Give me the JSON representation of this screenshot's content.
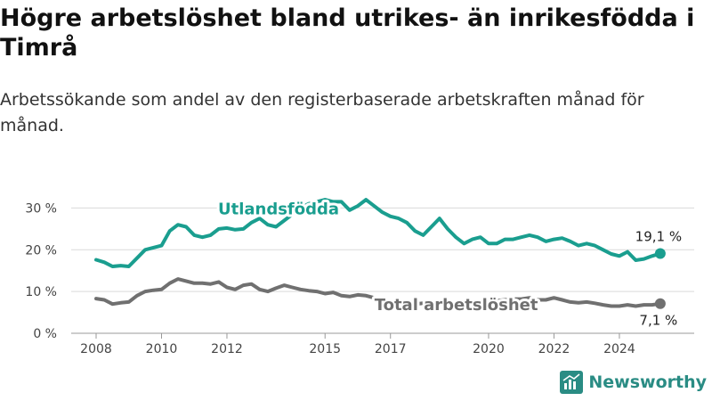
{
  "title": "Högre arbetslöshet bland utrikes- än inrikesfödda i Timrå",
  "subtitle": "Arbetssökande som andel av den registerbaserade arbetskraften månad för månad.",
  "brand": "Newsworthy",
  "colors": {
    "utlandsfodda": "#1a9e8f",
    "total": "#707070",
    "grid": "#d9d9d9",
    "brand": "#2a8c84"
  },
  "chart_data": {
    "type": "line",
    "x_ticks": [
      "2008",
      "2010",
      "2012",
      "2015",
      "2017",
      "2020",
      "2022",
      "2024"
    ],
    "y_ticks": [
      "0 %",
      "10 %",
      "20 %",
      "30 %"
    ],
    "ylim": [
      0,
      35
    ],
    "xlim": [
      "2008-01",
      "2025-06"
    ],
    "series": [
      {
        "name": "Utlandsfödda",
        "color": "#1a9e8f",
        "end_label": "19,1 %",
        "points": [
          [
            "2008-01",
            17.6
          ],
          [
            "2008-04",
            17.0
          ],
          [
            "2008-07",
            16.0
          ],
          [
            "2008-10",
            16.2
          ],
          [
            "2009-01",
            16.0
          ],
          [
            "2009-04",
            18.0
          ],
          [
            "2009-07",
            20.0
          ],
          [
            "2009-10",
            20.5
          ],
          [
            "2010-01",
            21.0
          ],
          [
            "2010-04",
            24.5
          ],
          [
            "2010-07",
            26.0
          ],
          [
            "2010-10",
            25.5
          ],
          [
            "2011-01",
            23.5
          ],
          [
            "2011-04",
            23.0
          ],
          [
            "2011-07",
            23.5
          ],
          [
            "2011-10",
            25.0
          ],
          [
            "2012-01",
            25.2
          ],
          [
            "2012-04",
            24.8
          ],
          [
            "2012-07",
            25.0
          ],
          [
            "2012-10",
            26.5
          ],
          [
            "2013-01",
            27.5
          ],
          [
            "2013-04",
            26.0
          ],
          [
            "2013-07",
            25.5
          ],
          [
            "2013-10",
            27.0
          ],
          [
            "2014-01",
            28.5
          ],
          [
            "2014-04",
            30.0
          ],
          [
            "2014-07",
            31.0
          ],
          [
            "2014-10",
            31.5
          ],
          [
            "2015-01",
            32.0
          ],
          [
            "2015-04",
            31.5
          ],
          [
            "2015-07",
            31.5
          ],
          [
            "2015-10",
            29.5
          ],
          [
            "2016-01",
            30.5
          ],
          [
            "2016-04",
            32.0
          ],
          [
            "2016-07",
            30.5
          ],
          [
            "2016-10",
            29.0
          ],
          [
            "2017-01",
            28.0
          ],
          [
            "2017-04",
            27.5
          ],
          [
            "2017-07",
            26.5
          ],
          [
            "2017-10",
            24.5
          ],
          [
            "2018-01",
            23.5
          ],
          [
            "2018-04",
            25.5
          ],
          [
            "2018-07",
            27.5
          ],
          [
            "2018-10",
            25.0
          ],
          [
            "2019-01",
            23.0
          ],
          [
            "2019-04",
            21.5
          ],
          [
            "2019-07",
            22.5
          ],
          [
            "2019-10",
            23.0
          ],
          [
            "2020-01",
            21.5
          ],
          [
            "2020-04",
            21.5
          ],
          [
            "2020-07",
            22.5
          ],
          [
            "2020-10",
            22.5
          ],
          [
            "2021-01",
            23.0
          ],
          [
            "2021-04",
            23.5
          ],
          [
            "2021-07",
            23.0
          ],
          [
            "2021-10",
            22.0
          ],
          [
            "2022-01",
            22.5
          ],
          [
            "2022-04",
            22.8
          ],
          [
            "2022-07",
            22.0
          ],
          [
            "2022-10",
            21.0
          ],
          [
            "2023-01",
            21.5
          ],
          [
            "2023-04",
            21.0
          ],
          [
            "2023-07",
            20.0
          ],
          [
            "2023-10",
            19.0
          ],
          [
            "2024-01",
            18.5
          ],
          [
            "2024-04",
            19.5
          ],
          [
            "2024-07",
            17.5
          ],
          [
            "2024-10",
            17.8
          ],
          [
            "2025-01",
            18.5
          ],
          [
            "2025-04",
            19.1
          ]
        ]
      },
      {
        "name": "Total arbetslöshet",
        "color": "#707070",
        "end_label": "7,1 %",
        "points": [
          [
            "2008-01",
            8.3
          ],
          [
            "2008-04",
            8.0
          ],
          [
            "2008-07",
            7.0
          ],
          [
            "2008-10",
            7.3
          ],
          [
            "2009-01",
            7.5
          ],
          [
            "2009-04",
            9.0
          ],
          [
            "2009-07",
            10.0
          ],
          [
            "2009-10",
            10.3
          ],
          [
            "2010-01",
            10.5
          ],
          [
            "2010-04",
            12.0
          ],
          [
            "2010-07",
            13.0
          ],
          [
            "2010-10",
            12.5
          ],
          [
            "2011-01",
            12.0
          ],
          [
            "2011-04",
            12.0
          ],
          [
            "2011-07",
            11.8
          ],
          [
            "2011-10",
            12.3
          ],
          [
            "2012-01",
            11.0
          ],
          [
            "2012-04",
            10.5
          ],
          [
            "2012-07",
            11.5
          ],
          [
            "2012-10",
            11.8
          ],
          [
            "2013-01",
            10.5
          ],
          [
            "2013-04",
            10.0
          ],
          [
            "2013-07",
            10.8
          ],
          [
            "2013-10",
            11.5
          ],
          [
            "2014-01",
            11.0
          ],
          [
            "2014-04",
            10.5
          ],
          [
            "2014-07",
            10.2
          ],
          [
            "2014-10",
            10.0
          ],
          [
            "2015-01",
            9.5
          ],
          [
            "2015-04",
            9.8
          ],
          [
            "2015-07",
            9.0
          ],
          [
            "2015-10",
            8.8
          ],
          [
            "2016-01",
            9.2
          ],
          [
            "2016-04",
            9.0
          ],
          [
            "2016-07",
            8.5
          ],
          [
            "2016-10",
            7.8
          ],
          [
            "2017-01",
            7.5
          ],
          [
            "2017-04",
            7.2
          ],
          [
            "2017-07",
            7.5
          ],
          [
            "2017-10",
            7.0
          ],
          [
            "2018-01",
            7.2
          ],
          [
            "2018-04",
            7.5
          ],
          [
            "2018-07",
            7.3
          ],
          [
            "2018-10",
            7.0
          ],
          [
            "2019-01",
            7.2
          ],
          [
            "2019-04",
            7.0
          ],
          [
            "2019-07",
            7.5
          ],
          [
            "2019-10",
            7.8
          ],
          [
            "2020-01",
            7.5
          ],
          [
            "2020-04",
            7.8
          ],
          [
            "2020-07",
            8.0
          ],
          [
            "2020-10",
            8.2
          ],
          [
            "2021-01",
            8.2
          ],
          [
            "2021-04",
            8.5
          ],
          [
            "2021-07",
            8.0
          ],
          [
            "2021-10",
            8.0
          ],
          [
            "2022-01",
            8.5
          ],
          [
            "2022-04",
            8.0
          ],
          [
            "2022-07",
            7.5
          ],
          [
            "2022-10",
            7.3
          ],
          [
            "2023-01",
            7.5
          ],
          [
            "2023-04",
            7.2
          ],
          [
            "2023-07",
            6.8
          ],
          [
            "2023-10",
            6.5
          ],
          [
            "2024-01",
            6.5
          ],
          [
            "2024-04",
            6.8
          ],
          [
            "2024-07",
            6.5
          ],
          [
            "2024-10",
            6.8
          ],
          [
            "2025-01",
            6.8
          ],
          [
            "2025-04",
            7.1
          ]
        ]
      }
    ],
    "grid": true
  }
}
